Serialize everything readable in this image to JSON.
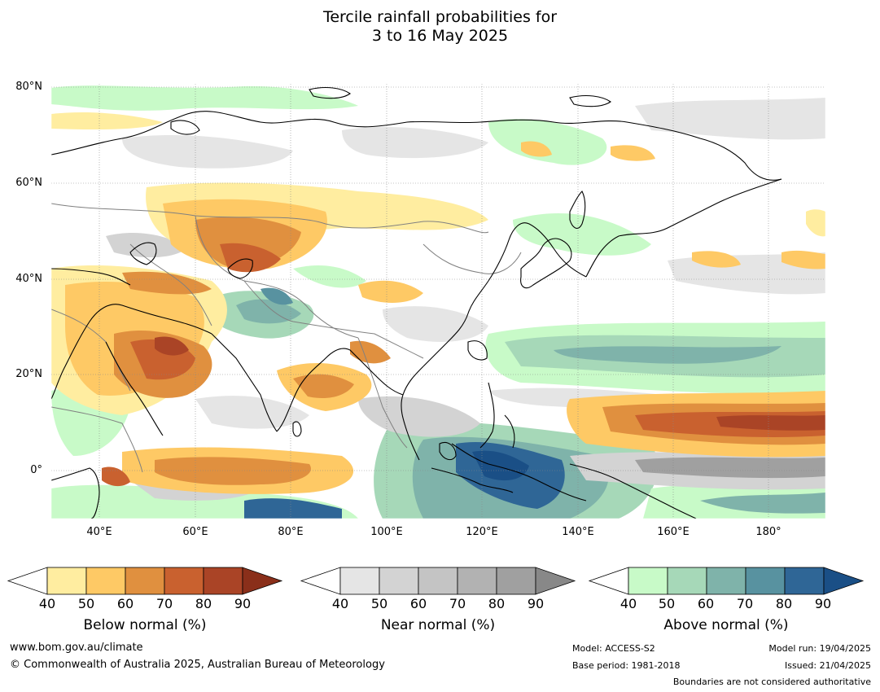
{
  "title": {
    "line1": "Tercile rainfall probabilities for",
    "line2": "3 to 16 May 2025"
  },
  "map": {
    "lat_labels": [
      "80°N",
      "60°N",
      "40°N",
      "20°N",
      "0°"
    ],
    "lon_labels": [
      "40°E",
      "60°E",
      "80°E",
      "100°E",
      "120°E",
      "140°E",
      "160°E",
      "180°"
    ],
    "extent": {
      "lon_min": 30,
      "lon_max": 192,
      "lat_min": -10,
      "lat_max": 81
    },
    "colors": {
      "coast": "#000000",
      "borders": "#808080",
      "grid": "#888888"
    }
  },
  "legends": [
    {
      "label": "Below normal (%)",
      "ticks": [
        "40",
        "50",
        "60",
        "70",
        "80",
        "90"
      ],
      "colors": [
        "#ffffff",
        "#ffeda0",
        "#fec965",
        "#e0903f",
        "#c9612f",
        "#aa4426",
        "#8a2f1a"
      ]
    },
    {
      "label": "Near normal (%)",
      "ticks": [
        "40",
        "50",
        "60",
        "70",
        "80",
        "90"
      ],
      "colors": [
        "#ffffff",
        "#e5e5e5",
        "#d3d3d3",
        "#c4c4c4",
        "#b2b2b2",
        "#a0a0a0",
        "#888888"
      ]
    },
    {
      "label": "Above normal (%)",
      "ticks": [
        "40",
        "50",
        "60",
        "70",
        "80",
        "90"
      ],
      "colors": [
        "#ffffff",
        "#c8fac8",
        "#a6d8b8",
        "#7fb3aa",
        "#5892a0",
        "#2f6696",
        "#1a4f86"
      ]
    }
  ],
  "footer": {
    "website": "www.bom.gov.au/climate",
    "copyright": "© Commonwealth of Australia 2025, Australian Bureau of Meteorology",
    "model": "Model: ACCESS-S2",
    "base_period": "Base period: 1981-2018",
    "model_run": "Model run: 19/04/2025",
    "issued": "Issued: 21/04/2025",
    "disclaimer": "Boundaries are not considered authoritative"
  }
}
